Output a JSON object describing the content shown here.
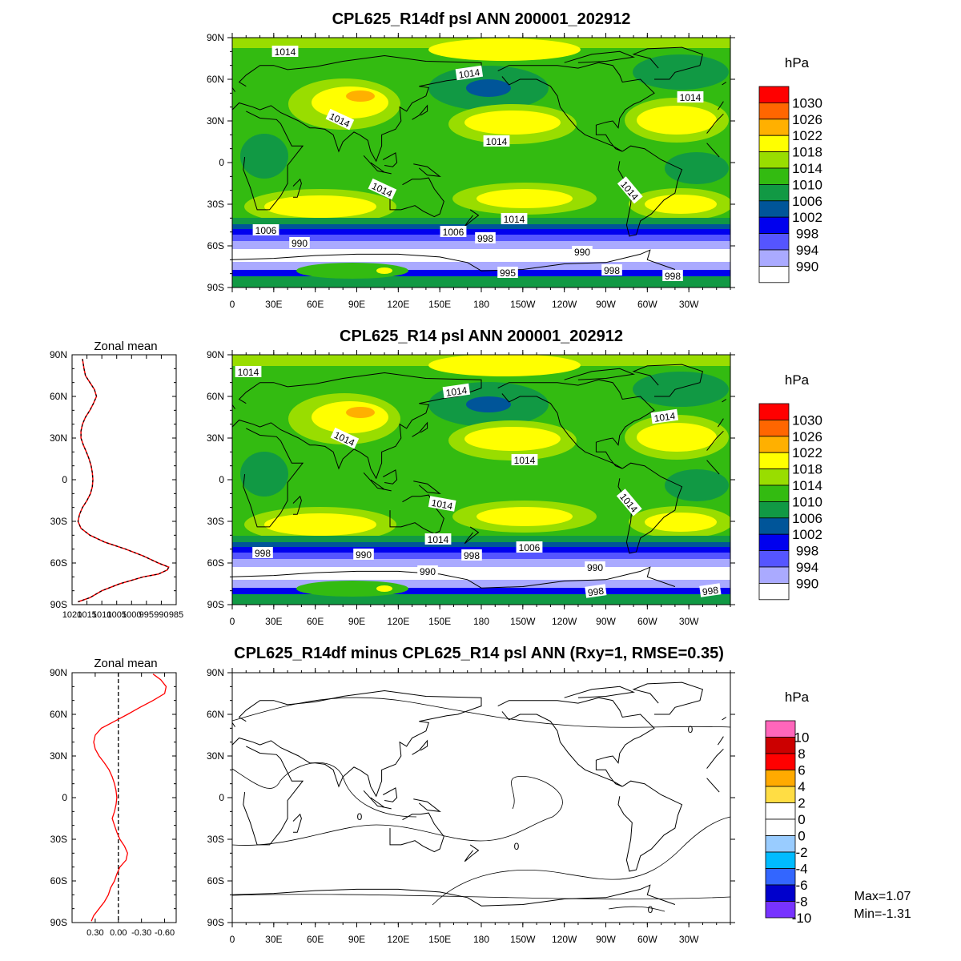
{
  "panels": [
    {
      "title": "CPL625_R14df psl ANN 200001_202912",
      "units": "hPa",
      "colorbar_labels": [
        "1030",
        "1026",
        "1022",
        "1018",
        "1014",
        "1010",
        "1006",
        "1002",
        "998",
        "994",
        "990"
      ],
      "colorbar_colors": [
        "#ff0000",
        "#ff6600",
        "#ffb000",
        "#ffff00",
        "#99dd00",
        "#33bb11",
        "#119944",
        "#005599",
        "#0000ee",
        "#5555ff",
        "#aaaaff",
        "#ffffff"
      ],
      "contour_labels": [
        "1014",
        "1014",
        "1014",
        "1014",
        "1014",
        "1014",
        "1014",
        "1014",
        "1006",
        "1006",
        "998",
        "990",
        "990",
        "998",
        "998",
        "995"
      ]
    },
    {
      "title": "CPL625_R14 psl ANN 200001_202912",
      "units": "hPa",
      "colorbar_labels": [
        "1030",
        "1026",
        "1022",
        "1018",
        "1014",
        "1010",
        "1006",
        "1002",
        "998",
        "994",
        "990"
      ],
      "colorbar_colors": [
        "#ff0000",
        "#ff6600",
        "#ffb000",
        "#ffff00",
        "#99dd00",
        "#33bb11",
        "#119944",
        "#005599",
        "#0000ee",
        "#5555ff",
        "#aaaaff",
        "#ffffff"
      ],
      "contour_labels": [
        "1014",
        "1014",
        "1014",
        "1014",
        "1014",
        "1014",
        "1014",
        "1014",
        "998",
        "990",
        "998",
        "1006",
        "990",
        "990",
        "998",
        "998"
      ]
    },
    {
      "title": "CPL625_R14df minus CPL625_R14 psl ANN (Rxy=1, RMSE=0.35)",
      "units": "hPa",
      "colorbar_labels": [
        "10",
        "8",
        "6",
        "4",
        "2",
        "0",
        "0",
        "-2",
        "-4",
        "-6",
        "-8",
        "-10"
      ],
      "colorbar_colors": [
        "#ff66bb",
        "#cc0000",
        "#ff0000",
        "#ffaa00",
        "#ffdd44",
        "#ffffff",
        "#ffffff",
        "#99ccff",
        "#00bbff",
        "#3366ff",
        "#0000cc",
        "#7733ff"
      ],
      "contour_labels": [
        "0",
        "0",
        "0",
        "0"
      ],
      "stats": {
        "max": "Max=1.07",
        "min": "Min=-1.31"
      }
    }
  ],
  "map_axes": {
    "lat_ticks": [
      "90N",
      "60N",
      "30N",
      "0",
      "30S",
      "60S",
      "90S"
    ],
    "lon_ticks": [
      "0",
      "30E",
      "60E",
      "90E",
      "120E",
      "150E",
      "180",
      "150W",
      "120W",
      "90W",
      "60W",
      "30W"
    ]
  },
  "zonal_mean": [
    {
      "title": "Zonal mean",
      "x_ticks": [
        "1020",
        "1015",
        "1010",
        "1005",
        "1000",
        "995",
        "990",
        "985"
      ],
      "x_range": [
        1020,
        985
      ],
      "lat_ticks": [
        "90N",
        "60N",
        "30N",
        "0",
        "30S",
        "60S",
        "90S"
      ],
      "series_lat": [
        87,
        80,
        75,
        70,
        65,
        60,
        55,
        50,
        45,
        40,
        35,
        30,
        25,
        20,
        15,
        10,
        5,
        0,
        -5,
        -10,
        -15,
        -20,
        -25,
        -30,
        -35,
        -40,
        -45,
        -50,
        -55,
        -60,
        -63,
        -65,
        -68,
        -70,
        -75,
        -80,
        -85,
        -88
      ],
      "series_psl": [
        1016.5,
        1016,
        1015.5,
        1014,
        1012.5,
        1011.8,
        1012.8,
        1014,
        1015.5,
        1016.5,
        1017,
        1017,
        1016.2,
        1015.2,
        1014.3,
        1013.6,
        1013.2,
        1013,
        1013.2,
        1013.8,
        1015,
        1016.5,
        1017.5,
        1018,
        1017,
        1014,
        1009,
        1002,
        996,
        991,
        987.5,
        988,
        991,
        996,
        1004,
        1010,
        1014,
        1018
      ]
    },
    {
      "title": "Zonal mean",
      "x_ticks": [
        "0.30",
        "0.00",
        "-0.30",
        "-0.60"
      ],
      "x_range": [
        0.6,
        -0.75
      ],
      "lat_ticks": [
        "90N",
        "60N",
        "30N",
        "0",
        "30S",
        "60S",
        "90S"
      ],
      "series_lat": [
        89,
        85,
        80,
        75,
        70,
        65,
        60,
        55,
        50,
        45,
        40,
        35,
        30,
        25,
        20,
        15,
        10,
        5,
        0,
        -5,
        -10,
        -15,
        -20,
        -25,
        -30,
        -35,
        -40,
        -45,
        -50,
        -55,
        -60,
        -65,
        -70,
        -75,
        -80,
        -85,
        -89
      ],
      "series_diff": [
        -0.45,
        -0.55,
        -0.62,
        -0.6,
        -0.45,
        -0.28,
        -0.12,
        0.05,
        0.22,
        0.3,
        0.32,
        0.3,
        0.25,
        0.18,
        0.12,
        0.08,
        0.05,
        0.03,
        0.02,
        0.03,
        0.05,
        0.08,
        0.05,
        0.02,
        -0.02,
        -0.08,
        -0.12,
        -0.1,
        -0.02,
        0.02,
        0.05,
        0.1,
        0.13,
        0.18,
        0.25,
        0.32,
        0.35
      ]
    }
  ]
}
